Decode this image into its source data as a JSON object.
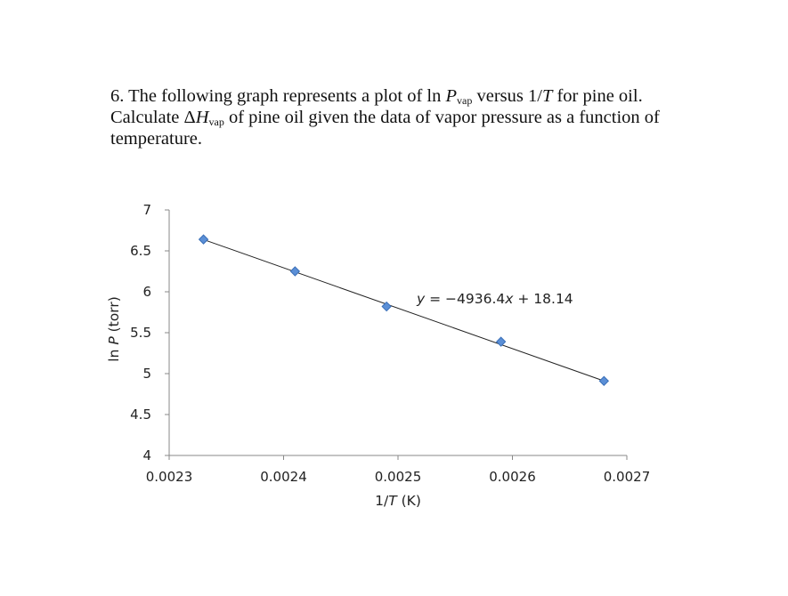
{
  "question": {
    "number": "6.",
    "s1": " The following graph represents a plot of ln ",
    "p_sym": "P",
    "p_sub": "vap",
    "s2": " versus 1/",
    "t_sym": "T",
    "s3": " for pine oil. Calculate Δ",
    "h_sym": "H",
    "h_sub": "vap",
    "s4": " of pine oil given the data of vapor pressure as a function of temperature."
  },
  "chart_data": {
    "type": "scatter",
    "title": "",
    "xlabel_pre": "1/",
    "xlabel_var": "T",
    "xlabel_post": " (K)",
    "ylabel_pre": "ln ",
    "ylabel_var": "P",
    "ylabel_post": " (torr)",
    "xlim": [
      0.0023,
      0.0027
    ],
    "ylim": [
      4,
      7
    ],
    "x_ticks": [
      "0.0023",
      "0.0024",
      "0.0025",
      "0.0026",
      "0.0027"
    ],
    "y_ticks": [
      "4",
      "4.5",
      "5",
      "5.5",
      "6",
      "6.5",
      "7"
    ],
    "grid": false,
    "points": [
      {
        "x": 0.00233,
        "y": 6.64
      },
      {
        "x": 0.00241,
        "y": 6.25
      },
      {
        "x": 0.00249,
        "y": 5.82
      },
      {
        "x": 0.00259,
        "y": 5.39
      },
      {
        "x": 0.00268,
        "y": 4.91
      }
    ],
    "trendline": {
      "slope": -4936.4,
      "intercept": 18.14,
      "x_start": 0.00233,
      "x_end": 0.00268
    },
    "equation": {
      "pre": "y",
      "mid": " = −4936.4",
      "var": "x",
      "post": " + 18.14"
    },
    "marker_color": "#5b8fd6",
    "marker_stroke": "#3a6fb8",
    "line_color": "#222222"
  }
}
